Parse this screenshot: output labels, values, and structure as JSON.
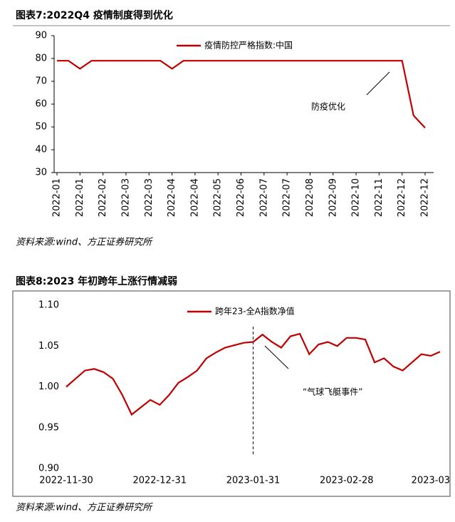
{
  "chart_data": [
    {
      "type": "line",
      "title": "图表7:2022Q4 疫情制度得到优化",
      "source": "资料来源:wind、方正证券研究所",
      "annotation": "防疫优化",
      "categories": [
        "2022-01",
        null,
        "2022-01",
        null,
        "2022-02",
        null,
        "2022-03",
        null,
        "2022-03",
        null,
        "2022-04",
        null,
        "2022-04",
        null,
        "2022-05",
        null,
        "2022-06",
        null,
        "2022-07",
        null,
        "2022-07",
        null,
        "2022-08",
        null,
        "2022-09",
        null,
        "2022-10",
        null,
        "2022-11",
        null,
        "2022-12",
        null,
        "2022-12"
      ],
      "series": [
        {
          "name": "疫情防控严格指数:中国",
          "color": "#c00000",
          "values": [
            79,
            79,
            75.5,
            79,
            79,
            79,
            79,
            79,
            79,
            79,
            75.5,
            79,
            79,
            79,
            79,
            79,
            79,
            79,
            79,
            79,
            79,
            79,
            79,
            79,
            79,
            79,
            79,
            79,
            79,
            79,
            79,
            55,
            49.6
          ]
        }
      ],
      "ylim": [
        30,
        90
      ],
      "yticks": [
        30,
        40,
        50,
        60,
        70,
        80,
        90
      ]
    },
    {
      "type": "line",
      "title": "图表8:2023 年初跨年上涨行情减弱",
      "source": "资料来源:wind、方正证券研究所",
      "annotation": "“气球飞艇事件”",
      "categories": [
        "2022-11-30",
        null,
        null,
        null,
        null,
        null,
        null,
        null,
        null,
        null,
        "2022-12-31",
        null,
        null,
        null,
        null,
        null,
        null,
        null,
        null,
        null,
        "2023-01-31",
        null,
        null,
        null,
        null,
        null,
        null,
        null,
        null,
        null,
        "2023-02-28",
        null,
        null,
        null,
        null,
        null,
        null,
        null,
        null,
        null,
        "2023-03"
      ],
      "series": [
        {
          "name": "跨年23-全A指数净值",
          "color": "#c00000",
          "values": [
            1.0,
            1.01,
            1.02,
            1.022,
            1.018,
            1.01,
            0.99,
            0.966,
            0.975,
            0.984,
            0.978,
            0.99,
            1.005,
            1.012,
            1.02,
            1.035,
            1.042,
            1.048,
            1.051,
            1.054,
            1.055,
            1.064,
            1.055,
            1.048,
            1.062,
            1.065,
            1.04,
            1.052,
            1.055,
            1.05,
            1.06,
            1.06,
            1.058,
            1.03,
            1.035,
            1.025,
            1.02,
            1.03,
            1.04,
            1.038,
            1.043
          ]
        }
      ],
      "ylim": [
        0.9,
        1.1
      ],
      "yticks": [
        {
          "value": 0.9,
          "label": "0.90"
        },
        {
          "value": 0.95,
          "label": "0.95"
        },
        {
          "value": 1.0,
          "label": "1.00"
        },
        {
          "value": 1.05,
          "label": "1.05"
        },
        {
          "value": 1.1,
          "label": "1.10"
        }
      ]
    }
  ]
}
